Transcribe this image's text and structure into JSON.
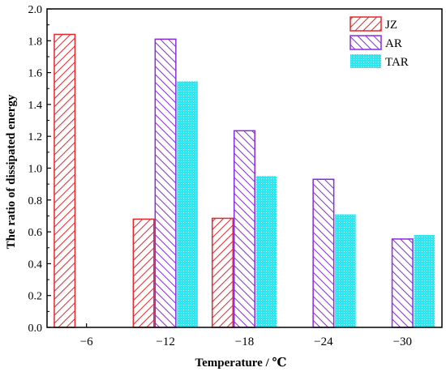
{
  "chart_data": {
    "type": "bar",
    "title": "",
    "xlabel": "Temperature / ℃",
    "ylabel": "The ratio of dissipated energy",
    "categories": [
      "−6",
      "−12",
      "−18",
      "−24",
      "−30"
    ],
    "ylim": [
      0,
      2.0
    ],
    "yticks": [
      "0.0",
      "0.2",
      "0.4",
      "0.6",
      "0.8",
      "1.0",
      "1.2",
      "1.4",
      "1.6",
      "1.8",
      "2.0"
    ],
    "grid": false,
    "legend_position": "top-right",
    "series": [
      {
        "name": "JZ",
        "color": "#e8262b",
        "pattern": "diagonal-hatch",
        "values": [
          1.84,
          0.68,
          0.685,
          null,
          null
        ]
      },
      {
        "name": "AR",
        "color": "#8a2be2",
        "pattern": "back-diagonal-hatch",
        "values": [
          null,
          1.81,
          1.235,
          0.93,
          0.555
        ]
      },
      {
        "name": "TAR",
        "color": "#2ee6f0",
        "pattern": "dots",
        "values": [
          null,
          1.545,
          0.95,
          0.71,
          0.58
        ]
      }
    ]
  }
}
